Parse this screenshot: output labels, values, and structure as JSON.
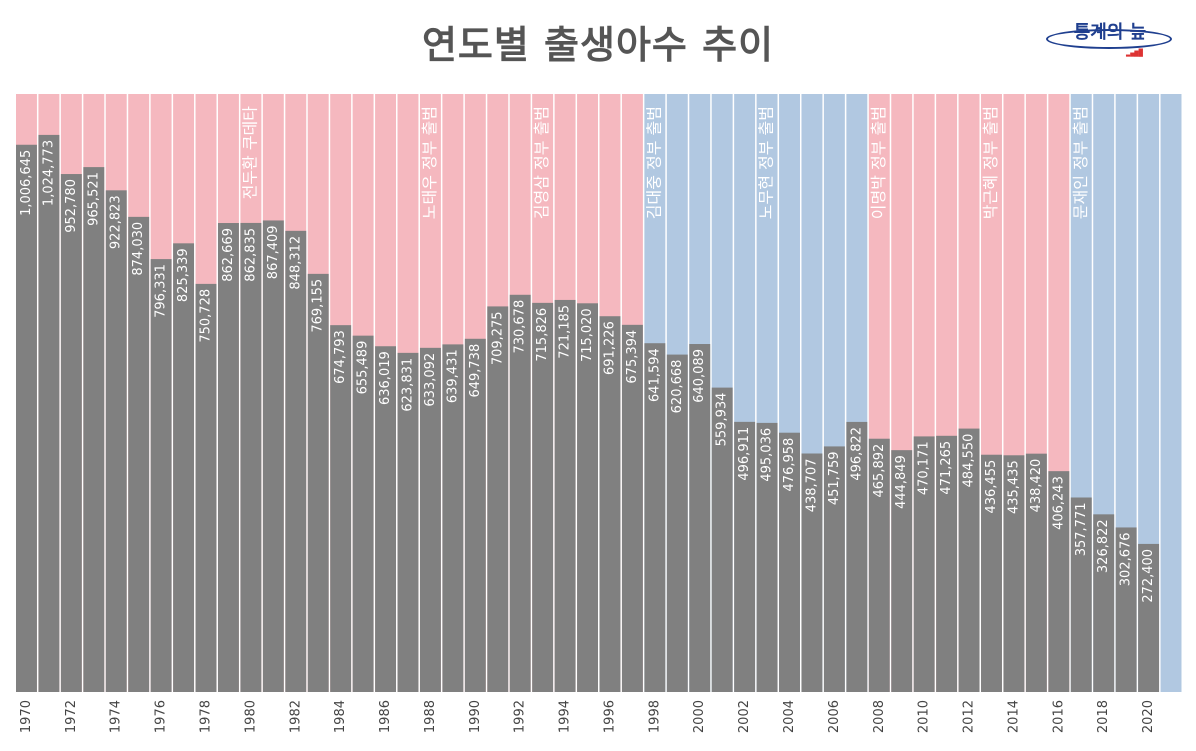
{
  "title": "연도별 출생아수 추이",
  "logo": {
    "text": "통계의 늪",
    "icon": "bar-chart-icon"
  },
  "colors": {
    "conservative": "#f5b8bf",
    "liberal": "#b1c8e1",
    "bar": "#808080",
    "value_text": "#ffffff",
    "axis_text": "#444444",
    "title": "#555555"
  },
  "chart_data": {
    "type": "bar",
    "ylim": [
      0,
      1100000
    ],
    "years": [
      1970,
      1971,
      1972,
      1973,
      1974,
      1975,
      1976,
      1977,
      1978,
      1979,
      1980,
      1981,
      1982,
      1983,
      1984,
      1985,
      1986,
      1987,
      1988,
      1989,
      1990,
      1991,
      1992,
      1993,
      1994,
      1995,
      1996,
      1997,
      1998,
      1999,
      2000,
      2001,
      2002,
      2003,
      2004,
      2005,
      2006,
      2007,
      2008,
      2009,
      2010,
      2011,
      2012,
      2013,
      2014,
      2015,
      2016,
      2017,
      2018,
      2019,
      2020,
      2021
    ],
    "x_tick_labels": [
      "1970",
      "",
      "1972",
      "",
      "1974",
      "",
      "1976",
      "",
      "1978",
      "",
      "1980",
      "",
      "1982",
      "",
      "1984",
      "",
      "1986",
      "",
      "1988",
      "",
      "1990",
      "",
      "1992",
      "",
      "1994",
      "",
      "1996",
      "",
      "1998",
      "",
      "2000",
      "",
      "2002",
      "",
      "2004",
      "",
      "2006",
      "",
      "2008",
      "",
      "2010",
      "",
      "2012",
      "",
      "2014",
      "",
      "2016",
      "",
      "2018",
      "",
      "2020",
      ""
    ],
    "values": [
      1006645,
      1024773,
      952780,
      965521,
      922823,
      874030,
      796331,
      825339,
      750728,
      862669,
      862835,
      867409,
      848312,
      769155,
      674793,
      655489,
      636019,
      623831,
      633092,
      639431,
      649738,
      709275,
      730678,
      715826,
      721185,
      715020,
      691226,
      675394,
      641594,
      620668,
      640089,
      559934,
      496911,
      495036,
      476958,
      438707,
      451759,
      496822,
      465892,
      444849,
      470171,
      471265,
      484550,
      436455,
      435435,
      438420,
      406243,
      357771,
      326822,
      302676,
      272400,
      null
    ],
    "value_labels": [
      "1,006,645",
      "1,024,773",
      "952,780",
      "965,521",
      "922,823",
      "874,030",
      "796,331",
      "825,339",
      "750,728",
      "862,669",
      "862,835",
      "867,409",
      "848,312",
      "769,155",
      "674,793",
      "655,489",
      "636,019",
      "623,831",
      "633,092",
      "639,431",
      "649,738",
      "709,275",
      "730,678",
      "715,826",
      "721,185",
      "715,020",
      "691,226",
      "675,394",
      "641,594",
      "620,668",
      "640,089",
      "559,934",
      "496,911",
      "495,036",
      "476,958",
      "438,707",
      "451,759",
      "496,822",
      "465,892",
      "444,849",
      "470,171",
      "471,265",
      "484,550",
      "436,455",
      "435,435",
      "438,420",
      "406,243",
      "357,771",
      "326,822",
      "302,676",
      "272,400",
      ""
    ],
    "background_group": [
      "conservative",
      "conservative",
      "conservative",
      "conservative",
      "conservative",
      "conservative",
      "conservative",
      "conservative",
      "conservative",
      "conservative",
      "conservative",
      "conservative",
      "conservative",
      "conservative",
      "conservative",
      "conservative",
      "conservative",
      "conservative",
      "conservative",
      "conservative",
      "conservative",
      "conservative",
      "conservative",
      "conservative",
      "conservative",
      "conservative",
      "conservative",
      "conservative",
      "liberal",
      "liberal",
      "liberal",
      "liberal",
      "liberal",
      "liberal",
      "liberal",
      "liberal",
      "liberal",
      "liberal",
      "conservative",
      "conservative",
      "conservative",
      "conservative",
      "conservative",
      "conservative",
      "conservative",
      "conservative",
      "conservative",
      "liberal",
      "liberal",
      "liberal",
      "liberal",
      "liberal"
    ],
    "annotations": [
      {
        "year": 1980,
        "text": "전두환 쿠데타"
      },
      {
        "year": 1988,
        "text": "노태우 정부 출범"
      },
      {
        "year": 1993,
        "text": "김영삼 정부 출범"
      },
      {
        "year": 1998,
        "text": "김대중 정부 출범"
      },
      {
        "year": 2003,
        "text": "노무현 정부 출범"
      },
      {
        "year": 2008,
        "text": "이명박 정부 출범"
      },
      {
        "year": 2013,
        "text": "박근혜 정부 출범"
      },
      {
        "year": 2017,
        "text": "문재인 정부 출범"
      }
    ],
    "grid": false,
    "legend": "none"
  }
}
